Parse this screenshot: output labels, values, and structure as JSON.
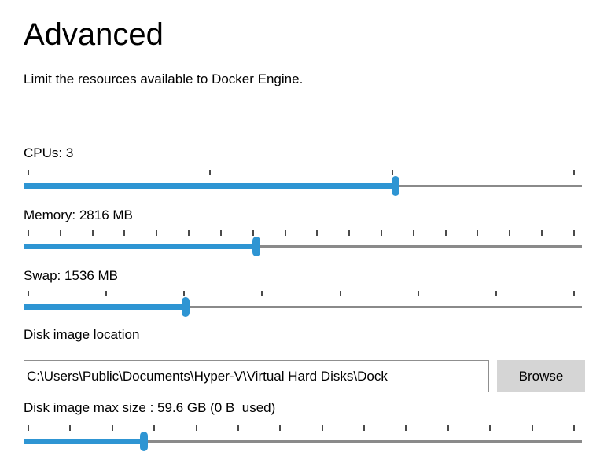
{
  "header": {
    "title": "Advanced",
    "subtitle": "Limit the resources available to Docker Engine."
  },
  "sliders": [
    {
      "id": "cpus",
      "label": "CPUs: 3",
      "tick_count": 4,
      "fill_percent": 66.6
    },
    {
      "id": "memory",
      "label": "Memory: 2816 MB",
      "tick_count": 18,
      "fill_percent": 41.7
    },
    {
      "id": "swap",
      "label": "Swap: 1536 MB",
      "tick_count": 8,
      "fill_percent": 29.0
    },
    {
      "id": "disk",
      "label": "Disk image max size : 59.6 GB (0 B  used)",
      "tick_count": 14,
      "fill_percent": 21.5
    }
  ],
  "disk_image": {
    "location_label": "Disk image location",
    "location_value": "C:\\Users\\Public\\Documents\\Hyper-V\\Virtual Hard Disks\\Dock",
    "browse_label": "Browse"
  },
  "colors": {
    "accent": "#2e95d3",
    "track_gray": "#8a8a8a",
    "tick_gray": "#4a4a4a",
    "button_bg": "#d5d5d5"
  }
}
